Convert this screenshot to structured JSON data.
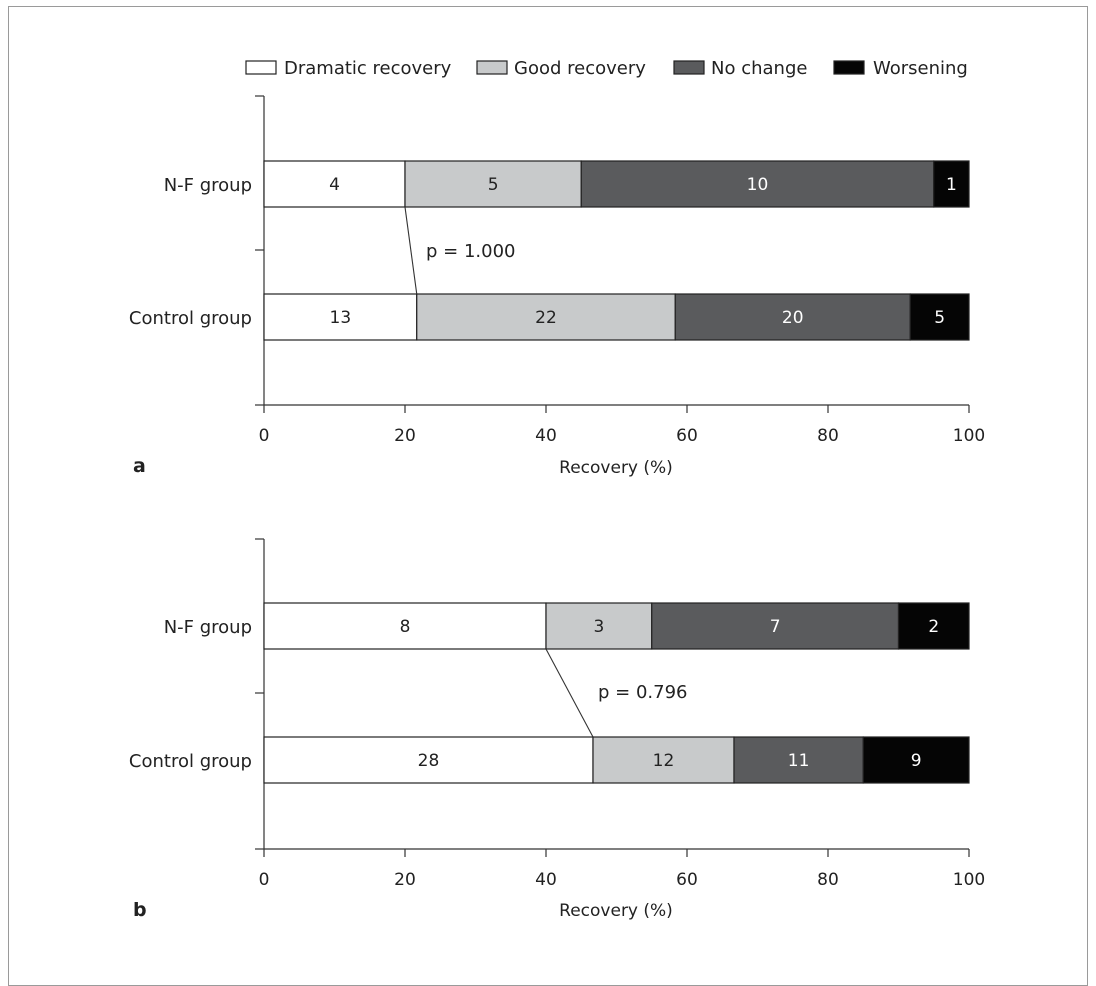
{
  "legend": [
    {
      "label": "Dramatic recovery",
      "color": "#ffffff"
    },
    {
      "label": "Good recovery",
      "color": "#c8cacb"
    },
    {
      "label": "No change",
      "color": "#5a5b5d"
    },
    {
      "label": "Worsening",
      "color": "#050505"
    }
  ],
  "chart_data": [
    {
      "type": "bar",
      "stacked": true,
      "orientation": "horizontal",
      "panel_label": "a",
      "xlabel": "Recovery (%)",
      "xlim": [
        0,
        100
      ],
      "xticks": [
        "0",
        "20",
        "40",
        "60",
        "80",
        "100"
      ],
      "categories": [
        "N-F group",
        "Control group"
      ],
      "series": [
        {
          "name": "Dramatic recovery",
          "values": [
            4,
            13
          ]
        },
        {
          "name": "Good recovery",
          "values": [
            5,
            22
          ]
        },
        {
          "name": "No change",
          "values": [
            10,
            20
          ]
        },
        {
          "name": "Worsening",
          "values": [
            1,
            5
          ]
        }
      ],
      "annotation": "p = 1.000"
    },
    {
      "type": "bar",
      "stacked": true,
      "orientation": "horizontal",
      "panel_label": "b",
      "xlabel": "Recovery (%)",
      "xlim": [
        0,
        100
      ],
      "xticks": [
        "0",
        "20",
        "40",
        "60",
        "80",
        "100"
      ],
      "categories": [
        "N-F group",
        "Control group"
      ],
      "series": [
        {
          "name": "Dramatic recovery",
          "values": [
            8,
            28
          ]
        },
        {
          "name": "Good recovery",
          "values": [
            3,
            12
          ]
        },
        {
          "name": "No change",
          "values": [
            7,
            11
          ]
        },
        {
          "name": "Worsening",
          "values": [
            2,
            9
          ]
        }
      ],
      "annotation": "p = 0.796"
    }
  ]
}
